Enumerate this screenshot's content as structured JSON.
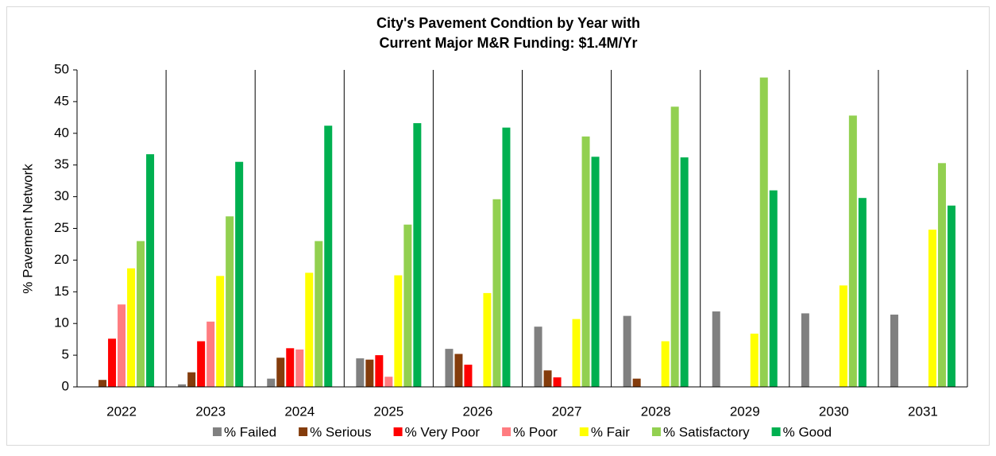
{
  "chart_data": {
    "type": "bar",
    "title_lines": [
      "City's Pavement Condtion by Year with",
      "Current Major M&R Funding: $1.4M/Yr"
    ],
    "y_label": "% Pavement Network",
    "categories": [
      "2022",
      "2023",
      "2024",
      "2025",
      "2026",
      "2027",
      "2028",
      "2029",
      "2030",
      "2031"
    ],
    "series": [
      {
        "name": "% Failed",
        "color": "#808080",
        "values": [
          0,
          0.4,
          1.3,
          4.5,
          6.0,
          9.5,
          11.2,
          11.9,
          11.6,
          11.4
        ]
      },
      {
        "name": "% Serious",
        "color": "#843c0c",
        "values": [
          1.1,
          2.3,
          4.6,
          4.3,
          5.2,
          2.6,
          1.3,
          0,
          0,
          0
        ]
      },
      {
        "name": "% Very Poor",
        "color": "#ff0000",
        "values": [
          7.6,
          7.2,
          6.1,
          5.0,
          3.5,
          1.5,
          0,
          0,
          0,
          0
        ]
      },
      {
        "name": "% Poor",
        "color": "#ff7c80",
        "values": [
          13.0,
          10.3,
          5.9,
          1.6,
          0,
          0,
          0,
          0,
          0,
          0
        ]
      },
      {
        "name": "% Fair",
        "color": "#ffff00",
        "values": [
          18.7,
          17.5,
          18.0,
          17.6,
          14.8,
          10.7,
          7.2,
          8.4,
          16.0,
          24.8
        ]
      },
      {
        "name": "% Satisfactory",
        "color": "#92d050",
        "values": [
          23.0,
          26.9,
          23.0,
          25.6,
          29.6,
          39.5,
          44.2,
          48.8,
          42.8,
          35.3
        ]
      },
      {
        "name": "% Good",
        "color": "#00b050",
        "values": [
          36.7,
          35.5,
          41.2,
          41.6,
          40.9,
          36.3,
          36.2,
          31.0,
          29.8,
          28.6
        ]
      }
    ],
    "ylim": [
      0,
      50
    ],
    "yticks": [
      0,
      5,
      10,
      15,
      20,
      25,
      30,
      35,
      40,
      45,
      50
    ],
    "legend": "bottom"
  }
}
